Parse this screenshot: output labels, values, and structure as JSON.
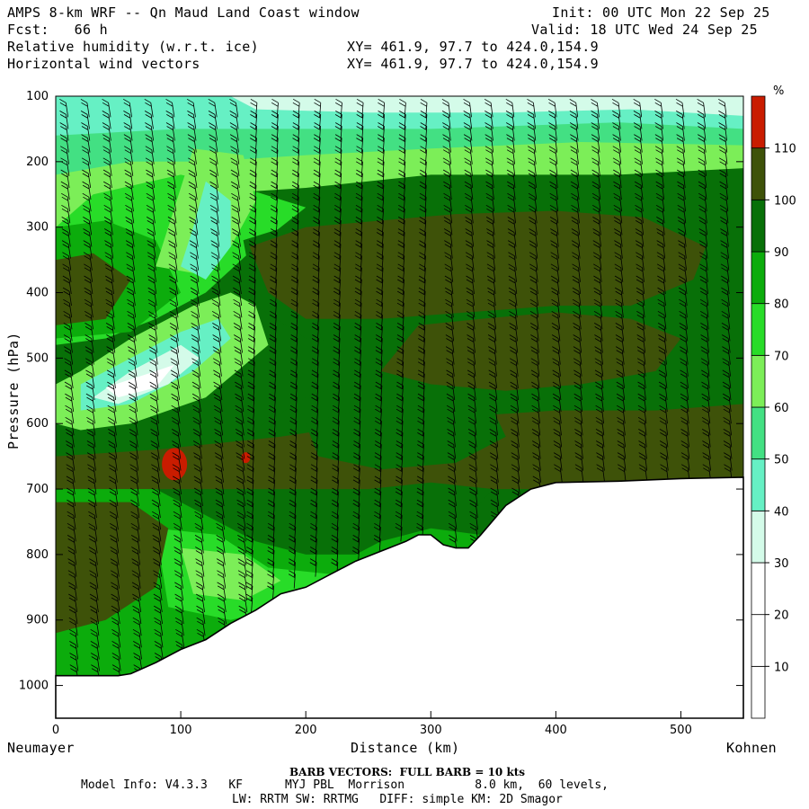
{
  "header": {
    "title_left": "AMPS 8-km WRF -- Qn Maud Land Coast window",
    "init": "Init: 00 UTC Mon 22 Sep 25",
    "fcst": "Fcst:   66 h",
    "valid": "Valid: 18 UTC Wed 24 Sep 25",
    "field1": "Relative humidity (w.r.t. ice)",
    "field2": "Horizontal wind vectors",
    "xy1": "XY= 461.9, 97.7 to 424.0,154.9",
    "xy2": "XY= 461.9, 97.7 to 424.0,154.9"
  },
  "footer": {
    "barb_note": "BARB VECTORS:  FULL BARB = 10 kts",
    "model_line1": "Model Info: V4.3.3   KF      MYJ PBL  Morrison          8.0 km,  60 levels,",
    "model_line2": "LW: RRTM SW: RRTMG   DIFF: simple KM: 2D Smagor"
  },
  "chart_data": {
    "type": "heatmap",
    "title": "Relative humidity (w.r.t. ice)",
    "xlabel": "Distance (km)",
    "ylabel": "Pressure (hPa)",
    "x_left_label": "Neumayer",
    "x_right_label": "Kohnen",
    "xlim": [
      0,
      550
    ],
    "ylim": [
      1050,
      100
    ],
    "x_ticks": [
      0,
      100,
      200,
      300,
      400,
      500
    ],
    "y_ticks": [
      100,
      200,
      300,
      400,
      500,
      600,
      700,
      800,
      900,
      1000
    ],
    "colorbar": {
      "unit": "%",
      "levels": [
        10,
        20,
        30,
        40,
        50,
        60,
        70,
        80,
        90,
        100,
        110
      ],
      "colors": [
        "#ffffff",
        "#ffffff",
        "#ffffff",
        "#d4fbe9",
        "#66f0c4",
        "#43e083",
        "#7cee58",
        "#28dc28",
        "#0cac0c",
        "#087008",
        "#3e5209",
        "#c91c00"
      ]
    },
    "terrain": {
      "distance_km": [
        0,
        50,
        60,
        80,
        100,
        120,
        140,
        160,
        180,
        200,
        220,
        240,
        260,
        280,
        290,
        300,
        310,
        320,
        330,
        340,
        360,
        380,
        400,
        450,
        500,
        550
      ],
      "surface_pressure_hPa": [
        985,
        985,
        982,
        965,
        945,
        930,
        905,
        885,
        860,
        850,
        830,
        810,
        795,
        780,
        770,
        770,
        785,
        790,
        790,
        770,
        725,
        700,
        690,
        688,
        684,
        682
      ]
    },
    "rh_regions": [
      {
        "name": "upper-moist-band",
        "rh": "90-100",
        "x_km": [
          60,
          550
        ],
        "p_hPa": [
          200,
          300
        ]
      },
      {
        "name": "mid-saturated-core",
        "rh": "100-110",
        "x_km": [
          150,
          550
        ],
        "p_hPa": [
          280,
          560
        ]
      },
      {
        "name": "dry-slot",
        "rh": "20-40",
        "x_km": [
          30,
          130
        ],
        "p_hPa": [
          470,
          580
        ]
      },
      {
        "name": "upper-dry-layer",
        "rh": "30-50",
        "x_km": [
          0,
          550
        ],
        "p_hPa": [
          100,
          160
        ]
      },
      {
        "name": "supersaturated-cell",
        "rh": ">110",
        "x_km": [
          85,
          105
        ],
        "p_hPa": [
          640,
          690
        ]
      }
    ],
    "barbs": {
      "note": "FULL BARB = 10 kts"
    }
  }
}
